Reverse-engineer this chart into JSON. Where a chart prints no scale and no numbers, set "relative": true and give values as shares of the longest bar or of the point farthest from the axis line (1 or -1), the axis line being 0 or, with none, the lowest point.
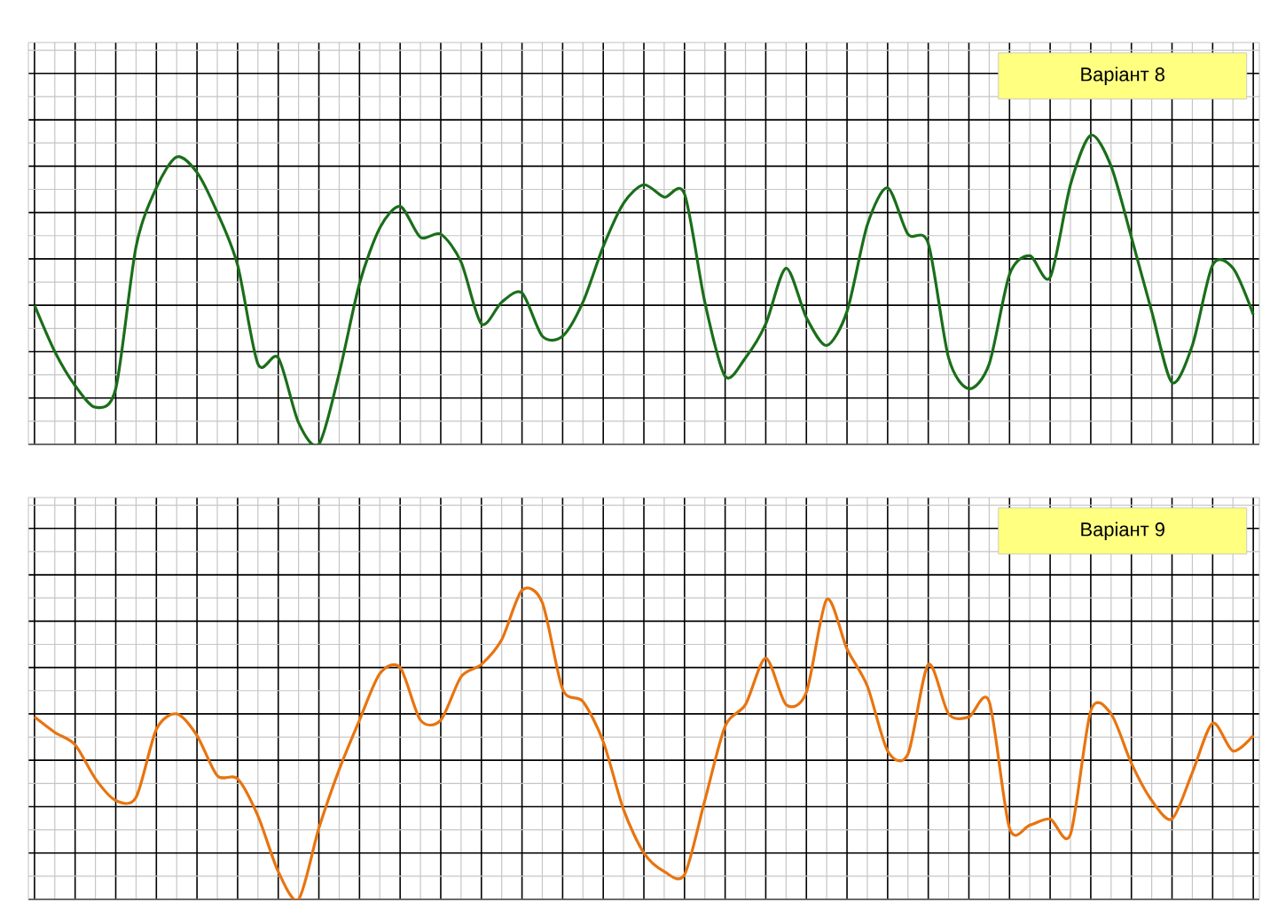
{
  "chart_data": [
    {
      "type": "line",
      "relative": true,
      "grid": true,
      "annotations": [
        "Варіант 8"
      ],
      "categories": [
        null,
        null,
        null,
        null,
        null,
        null,
        null,
        null,
        null,
        null,
        null,
        null,
        null,
        null,
        null,
        null,
        null,
        null,
        null,
        null,
        null,
        null,
        null,
        null,
        null,
        null,
        null,
        null,
        null,
        null,
        null,
        null,
        null,
        null,
        null,
        null,
        null,
        null,
        null,
        null,
        null,
        null,
        null,
        null,
        null,
        null,
        null,
        null,
        null,
        null,
        null,
        null,
        null,
        null,
        null,
        null,
        null,
        null,
        null,
        null,
        null
      ],
      "series": [
        {
          "color": "#1a6e1a",
          "values": [
            0.45,
            0.3,
            0.19,
            0.12,
            0.18,
            0.64,
            0.83,
            0.93,
            0.88,
            0.75,
            0.58,
            0.26,
            0.28,
            0.07,
            0.0,
            0.23,
            0.52,
            0.7,
            0.77,
            0.67,
            0.68,
            0.59,
            0.39,
            0.46,
            0.49,
            0.35,
            0.35,
            0.46,
            0.64,
            0.78,
            0.84,
            0.8,
            0.81,
            0.46,
            0.22,
            0.28,
            0.39,
            0.57,
            0.41,
            0.32,
            0.43,
            0.71,
            0.83,
            0.68,
            0.65,
            0.28,
            0.18,
            0.26,
            0.55,
            0.61,
            0.54,
            0.84,
            1.0,
            0.9,
            0.67,
            0.43,
            0.2,
            0.32,
            0.58,
            0.57,
            0.42
          ]
        }
      ]
    },
    {
      "type": "line",
      "relative": true,
      "grid": true,
      "annotations": [
        "Варіант 9"
      ],
      "categories": [
        null,
        null,
        null,
        null,
        null,
        null,
        null,
        null,
        null,
        null,
        null,
        null,
        null,
        null,
        null,
        null,
        null,
        null,
        null,
        null,
        null,
        null,
        null,
        null,
        null,
        null,
        null,
        null,
        null,
        null,
        null,
        null,
        null,
        null,
        null,
        null,
        null,
        null,
        null,
        null,
        null,
        null,
        null,
        null,
        null,
        null,
        null,
        null,
        null,
        null,
        null,
        null,
        null,
        null,
        null,
        null,
        null,
        null,
        null,
        null,
        null
      ],
      "series": [
        {
          "color": "#e8740f",
          "values": [
            0.59,
            0.54,
            0.5,
            0.39,
            0.32,
            0.33,
            0.55,
            0.6,
            0.53,
            0.4,
            0.39,
            0.27,
            0.09,
            0.0,
            0.23,
            0.42,
            0.58,
            0.73,
            0.75,
            0.58,
            0.58,
            0.72,
            0.76,
            0.84,
            1.0,
            0.96,
            0.68,
            0.64,
            0.51,
            0.29,
            0.15,
            0.09,
            0.08,
            0.32,
            0.56,
            0.63,
            0.78,
            0.63,
            0.67,
            0.97,
            0.81,
            0.69,
            0.48,
            0.47,
            0.76,
            0.6,
            0.59,
            0.64,
            0.23,
            0.24,
            0.26,
            0.21,
            0.61,
            0.6,
            0.44,
            0.32,
            0.26,
            0.41,
            0.57,
            0.48,
            0.53
          ]
        }
      ]
    }
  ]
}
